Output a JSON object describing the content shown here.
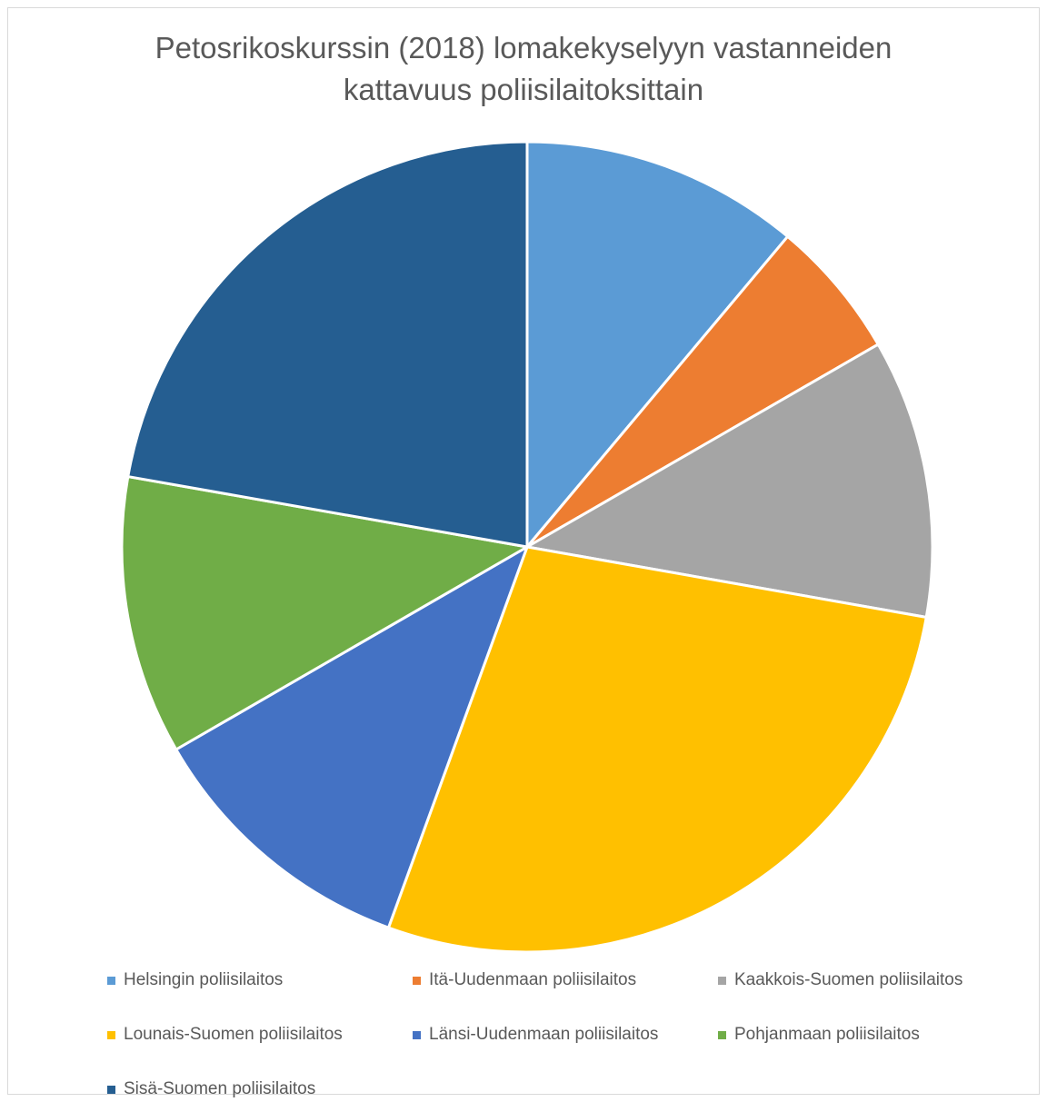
{
  "chart_data": {
    "type": "pie",
    "title_lines": [
      "Petosrikoskurssin (2018) lomakekyselyyn vastanneiden",
      "kattavuus poliisilaitoksittain"
    ],
    "categories": [
      "Helsingin poliisilaitos",
      "Itä-Uudenmaan poliisilaitos",
      "Kaakkois-Suomen poliisilaitos",
      "Lounais-Suomen poliisilaitos",
      "Länsi-Uudenmaan poliisilaitos",
      "Pohjanmaan poliisilaitos",
      "Sisä-Suomen poliisilaitos"
    ],
    "values": [
      2,
      1,
      2,
      5,
      2,
      2,
      4
    ],
    "colors": [
      "#5B9BD5",
      "#ED7D31",
      "#A5A5A5",
      "#FFC000",
      "#4472C4",
      "#70AD47",
      "#255E91"
    ],
    "legend_position": "bottom",
    "start_angle": "12 o'clock",
    "direction": "clockwise"
  }
}
